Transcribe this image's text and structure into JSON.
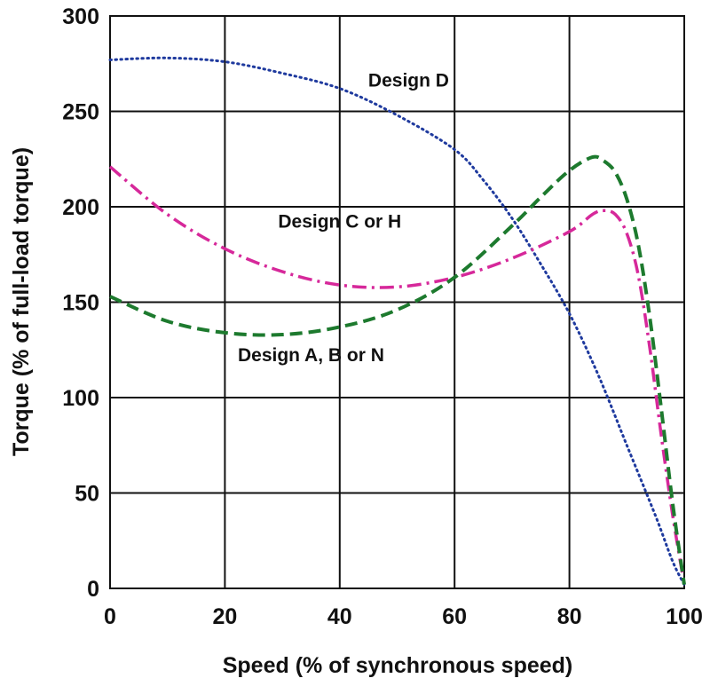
{
  "chart_data": {
    "type": "line",
    "title": "",
    "xlabel": "Speed (% of synchronous speed)",
    "ylabel": "Torque (% of full-load torque)",
    "xlim": [
      0,
      100
    ],
    "ylim": [
      0,
      300
    ],
    "xticks": [
      "0",
      "20",
      "40",
      "60",
      "80",
      "100"
    ],
    "yticks": [
      "0",
      "50",
      "100",
      "150",
      "200",
      "250",
      "300"
    ],
    "grid": true,
    "legend": "none (curves labeled directly)",
    "series": [
      {
        "name": "Design D",
        "color": "#1f3a9e",
        "style": "dotted",
        "x": [
          0,
          10,
          20,
          30,
          40,
          50,
          60,
          65,
          70,
          75,
          80,
          85,
          90,
          95,
          98,
          100
        ],
        "y": [
          277,
          278,
          276,
          270,
          262,
          248,
          230,
          214,
          194,
          170,
          144,
          112,
          75,
          38,
          14,
          2
        ]
      },
      {
        "name": "Design C or H",
        "color": "#d6289a",
        "style": "dash-dot",
        "x": [
          0,
          10,
          20,
          30,
          40,
          50,
          60,
          70,
          80,
          84,
          86,
          88,
          90,
          92,
          94,
          96,
          98,
          100
        ],
        "y": [
          221,
          196,
          178,
          166,
          159,
          158,
          163,
          173,
          187,
          196,
          198,
          196,
          186,
          164,
          126,
          80,
          38,
          2
        ]
      },
      {
        "name": "Design A, B or N",
        "color": "#1d7a2e",
        "style": "dashed",
        "x": [
          0,
          10,
          20,
          30,
          40,
          50,
          60,
          70,
          75,
          80,
          84,
          86,
          88,
          90,
          92,
          94,
          96,
          98,
          100
        ],
        "y": [
          153,
          140,
          134,
          133,
          137,
          146,
          163,
          190,
          205,
          219,
          226,
          224,
          218,
          204,
          180,
          142,
          94,
          44,
          2
        ]
      }
    ],
    "annotations": [
      {
        "text": "Design D",
        "x": 52,
        "y": 263
      },
      {
        "text": "Design C or H",
        "x": 40,
        "y": 189
      },
      {
        "text": "Design A, B or N",
        "x": 35,
        "y": 119
      }
    ]
  }
}
